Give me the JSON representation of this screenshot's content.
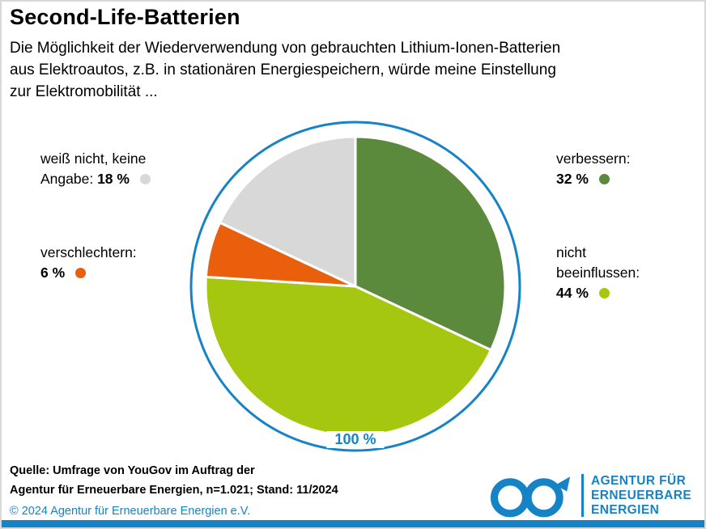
{
  "title": "Second-Life-Batterien",
  "subtitle": {
    "lines": [
      "Die Möglichkeit der Wiederverwendung von gebrauchten Lithium-Ionen-Batterien",
      "aus Elektroautos, z.B. in stationären Energiespeichern, würde meine Einstellung",
      "zur Elektromobilität ..."
    ]
  },
  "chart_data": {
    "type": "pie",
    "title": "Second-Life-Batterien",
    "question": "Die Möglichkeit der Wiederverwendung von gebrauchten Lithium-Ionen-Batterien aus Elektroautos, z.B. in stationären Energiespeichern, würde meine Einstellung zur Elektromobilität ...",
    "unit": "%",
    "total_label": "100 %",
    "start_angle_deg": -90,
    "direction": "clockwise",
    "ring_color": "#1583c5",
    "slices": [
      {
        "label": "verbessern",
        "value": 32,
        "color": "#5b8a3c"
      },
      {
        "label": "nicht beeinflussen",
        "value": 44,
        "color": "#a6c70f"
      },
      {
        "label": "verschlechtern",
        "value": 6,
        "color": "#e95f0c"
      },
      {
        "label": "weiß nicht, keine Angabe",
        "value": 18,
        "color": "#d8d8d8"
      }
    ]
  },
  "callouts": {
    "weiss_nicht": {
      "line1": "weiß nicht, keine",
      "line2_prefix": "Angabe:",
      "value": "18 %",
      "color": "#d8d8d8"
    },
    "verschlechtern": {
      "line1": "verschlechtern:",
      "value": "6 %",
      "color": "#e95f0c"
    },
    "verbessern": {
      "line1": "verbessern:",
      "value": "32 %",
      "color": "#5b8a3c"
    },
    "nicht_beeinflussen": {
      "line1": "nicht",
      "line2": "beeinflussen:",
      "value": "44 %",
      "color": "#a6c70f"
    }
  },
  "footer": {
    "source_line1": "Quelle: Umfrage von YouGov im Auftrag der",
    "source_line2": "Agentur für Erneuerbare Energien, n=1.021; Stand: 11/2024",
    "copyright": "© 2024 Agentur für Erneuerbare Energien e.V."
  },
  "logo": {
    "line1": "AGENTUR FÜR",
    "line2": "ERNEUERBARE",
    "line3": "ENERGIEN",
    "color": "#1583c5"
  }
}
